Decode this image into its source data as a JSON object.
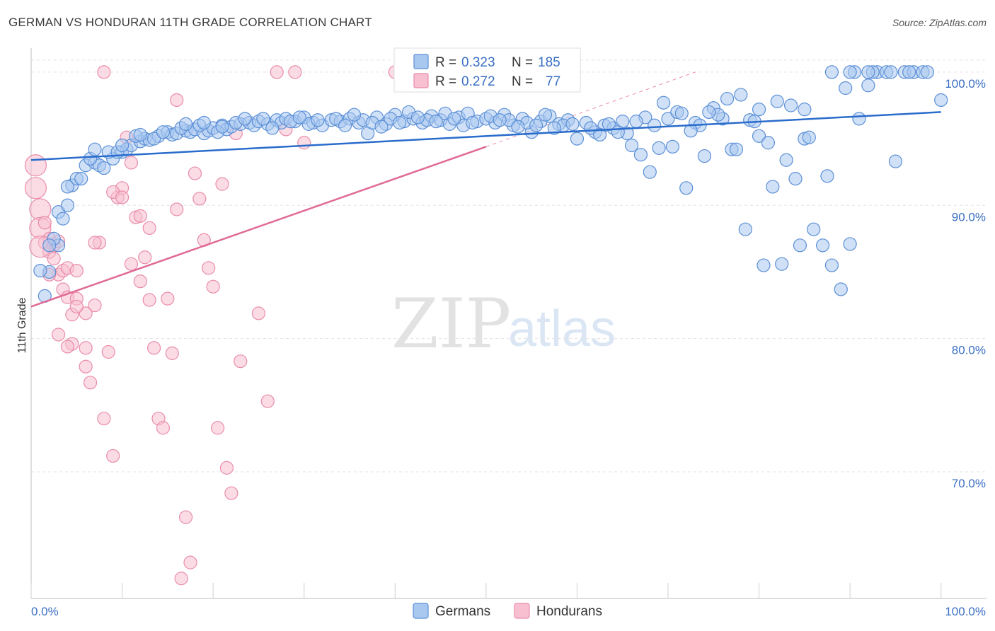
{
  "header": {
    "title": "GERMAN VS HONDURAN 11TH GRADE CORRELATION CHART",
    "source": "Source: ZipAtlas.com"
  },
  "watermark": {
    "zip": "ZIP",
    "atlas": "atlas"
  },
  "colors": {
    "german_fill": "#a9c8f0",
    "german_stroke": "#5b8fd6",
    "german_line": "#2a6ccc",
    "honduran_fill": "#f7bfd0",
    "honduran_stroke": "#e98cab",
    "honduran_line": "#e06a96",
    "tick_label": "#3a6fc4"
  },
  "legend": {
    "rows": [
      {
        "r_label": "R = ",
        "r_value": "0.323",
        "n_label": "N = ",
        "n_value": "185"
      },
      {
        "r_label": "R = ",
        "r_value": "0.272",
        "n_label": "N = ",
        "n_value": "77"
      }
    ]
  },
  "chart_data": {
    "type": "scatter",
    "title": "GERMAN VS HONDURAN 11TH GRADE CORRELATION CHART",
    "xlabel": "",
    "ylabel": "11th Grade",
    "xlim": [
      0,
      105
    ],
    "ylim": [
      60.5,
      101.8
    ],
    "x_tick_labels": [
      "0.0%",
      "100.0%"
    ],
    "y_ticks": [
      70,
      80,
      90,
      100
    ],
    "y_tick_labels": [
      "70.0%",
      "80.0%",
      "90.0%",
      "100.0%"
    ],
    "grid": true,
    "legend_position": "top-center",
    "series": [
      {
        "name": "Germans",
        "r": 0.323,
        "n": 185,
        "trend": {
          "x0": 0,
          "y0": 93.4,
          "x1": 100,
          "y1": 97.0
        },
        "points": [
          [
            1.5,
            83.2
          ],
          [
            2,
            85
          ],
          [
            3,
            87
          ],
          [
            3,
            89.5
          ],
          [
            4,
            90
          ],
          [
            4.5,
            91.5
          ],
          [
            5,
            92
          ],
          [
            6,
            93
          ],
          [
            7,
            93.2
          ],
          [
            7.5,
            93
          ],
          [
            8,
            92.8
          ],
          [
            9,
            93.5
          ],
          [
            10,
            94
          ],
          [
            10.5,
            94.2
          ],
          [
            11,
            94.5
          ],
          [
            12,
            94.8
          ],
          [
            12.5,
            95
          ],
          [
            13,
            94.9
          ],
          [
            14,
            95.2
          ],
          [
            15,
            95.5
          ],
          [
            15.5,
            95.3
          ],
          [
            16,
            95.4
          ],
          [
            17,
            95.6
          ],
          [
            17.5,
            95.5
          ],
          [
            18,
            95.7
          ],
          [
            19,
            95.4
          ],
          [
            19.5,
            95.6
          ],
          [
            20,
            95.8
          ],
          [
            21,
            96
          ],
          [
            21.5,
            95.7
          ],
          [
            22,
            95.9
          ],
          [
            23,
            96.1
          ],
          [
            24,
            96.2
          ],
          [
            24.5,
            96
          ],
          [
            25,
            96.3
          ],
          [
            26,
            96.1
          ],
          [
            27,
            96.4
          ],
          [
            27.5,
            96.2
          ],
          [
            28,
            96.5
          ],
          [
            29,
            96.3
          ],
          [
            30,
            96.6
          ],
          [
            31,
            96.2
          ],
          [
            32,
            96
          ],
          [
            33,
            96.4
          ],
          [
            34,
            96.3
          ],
          [
            35,
            96.5
          ],
          [
            36,
            96.2
          ],
          [
            36.5,
            96.4
          ],
          [
            37,
            95.4
          ],
          [
            38,
            96.6
          ],
          [
            39,
            96.1
          ],
          [
            40,
            96.8
          ],
          [
            41,
            96.3
          ],
          [
            42,
            96.5
          ],
          [
            43,
            96.2
          ],
          [
            44,
            96.7
          ],
          [
            45,
            96.4
          ],
          [
            46,
            96.1
          ],
          [
            47,
            96.6
          ],
          [
            48,
            96.9
          ],
          [
            49,
            96.3
          ],
          [
            50,
            96.5
          ],
          [
            51,
            96.2
          ],
          [
            52,
            96.8
          ],
          [
            53,
            96
          ],
          [
            54,
            96.5
          ],
          [
            55,
            95.5
          ],
          [
            56,
            96.3
          ],
          [
            57,
            96.7
          ],
          [
            58,
            96.1
          ],
          [
            59,
            96.4
          ],
          [
            60,
            95
          ],
          [
            61,
            96.2
          ],
          [
            62,
            95.5
          ],
          [
            63,
            96
          ],
          [
            64,
            95.8
          ],
          [
            65,
            96.3
          ],
          [
            66,
            94.5
          ],
          [
            67,
            93.8
          ],
          [
            68,
            92.5
          ],
          [
            69,
            94.3
          ],
          [
            70,
            96.5
          ],
          [
            71,
            97
          ],
          [
            72,
            91.3
          ],
          [
            73,
            96.2
          ],
          [
            74,
            93.7
          ],
          [
            75,
            97.3
          ],
          [
            76,
            96.5
          ],
          [
            77,
            94.2
          ],
          [
            78,
            98.3
          ],
          [
            79,
            96.4
          ],
          [
            80,
            95.2
          ],
          [
            81,
            94.7
          ],
          [
            82,
            97.8
          ],
          [
            83,
            93.4
          ],
          [
            84,
            92
          ],
          [
            85,
            95
          ],
          [
            86,
            88.2
          ],
          [
            87,
            87
          ],
          [
            88,
            85.5
          ],
          [
            89,
            83.7
          ],
          [
            90,
            87.1
          ],
          [
            91,
            96.5
          ],
          [
            92,
            99
          ],
          [
            93,
            100
          ],
          [
            94,
            100
          ],
          [
            95,
            93.3
          ],
          [
            96,
            100
          ],
          [
            97,
            100
          ],
          [
            98,
            100
          ],
          [
            100,
            97.9
          ],
          [
            5.5,
            92
          ],
          [
            6.5,
            93.5
          ],
          [
            8.5,
            94
          ],
          [
            9.5,
            94
          ],
          [
            11.5,
            95.2
          ],
          [
            13.5,
            95
          ],
          [
            16.5,
            95.8
          ],
          [
            18.5,
            96
          ],
          [
            20.5,
            95.5
          ],
          [
            22.5,
            96.2
          ],
          [
            25.5,
            96.5
          ],
          [
            28.5,
            96.3
          ],
          [
            30.5,
            96.1
          ],
          [
            33.5,
            96.5
          ],
          [
            35.5,
            96.8
          ],
          [
            37.5,
            96.2
          ],
          [
            39.5,
            96.5
          ],
          [
            41.5,
            97
          ],
          [
            43.5,
            96.4
          ],
          [
            45.5,
            96.9
          ],
          [
            47.5,
            96
          ],
          [
            50.5,
            96.7
          ],
          [
            52.5,
            96.4
          ],
          [
            54.5,
            96.2
          ],
          [
            56.5,
            96.8
          ],
          [
            58.5,
            96
          ],
          [
            61.5,
            95.8
          ],
          [
            63.5,
            96.1
          ],
          [
            65.5,
            95.4
          ],
          [
            67.5,
            96.6
          ],
          [
            69.5,
            97.7
          ],
          [
            71.5,
            96.9
          ],
          [
            73.5,
            96
          ],
          [
            75.5,
            96.8
          ],
          [
            77.5,
            94.2
          ],
          [
            79.5,
            96.3
          ],
          [
            81.5,
            91.4
          ],
          [
            83.5,
            97.5
          ],
          [
            85.5,
            95.1
          ],
          [
            87.5,
            92.2
          ],
          [
            89.5,
            98.8
          ],
          [
            90.5,
            100
          ],
          [
            92.5,
            100
          ],
          [
            94.5,
            100
          ],
          [
            96.5,
            100
          ],
          [
            98.5,
            100
          ],
          [
            84.5,
            87
          ],
          [
            82.5,
            85.6
          ],
          [
            80.5,
            85.5
          ],
          [
            78.5,
            88.2
          ],
          [
            1,
            85.1
          ],
          [
            2.5,
            87.5
          ],
          [
            3.5,
            89
          ],
          [
            4,
            91.4
          ],
          [
            2,
            87
          ],
          [
            7,
            94.2
          ],
          [
            10,
            94.5
          ],
          [
            12,
            95.3
          ],
          [
            14.5,
            95.5
          ],
          [
            17,
            96.1
          ],
          [
            19,
            96.2
          ],
          [
            21,
            95.9
          ],
          [
            23.5,
            96.5
          ],
          [
            26.5,
            95.8
          ],
          [
            29.5,
            96.6
          ],
          [
            31.5,
            96.4
          ],
          [
            34.5,
            96
          ],
          [
            38.5,
            95.9
          ],
          [
            40.5,
            96.2
          ],
          [
            42.5,
            96.6
          ],
          [
            44.5,
            96.3
          ],
          [
            46.5,
            96.5
          ],
          [
            48.5,
            96.2
          ],
          [
            51.5,
            96.4
          ],
          [
            53.5,
            95.9
          ],
          [
            55.5,
            96
          ],
          [
            57.5,
            95.8
          ],
          [
            59.5,
            96.1
          ],
          [
            62.5,
            95.3
          ],
          [
            64.5,
            95.5
          ],
          [
            66.5,
            96.3
          ],
          [
            68.5,
            96
          ],
          [
            70.5,
            94.4
          ],
          [
            72.5,
            95.6
          ],
          [
            74.5,
            97
          ],
          [
            76.5,
            98
          ],
          [
            80,
            97.2
          ],
          [
            85,
            97.2
          ],
          [
            88,
            100
          ],
          [
            90,
            100
          ],
          [
            92,
            100
          ]
        ]
      },
      {
        "name": "Hondurans",
        "r": 0.272,
        "n": 77,
        "trend": {
          "x0": 0,
          "y0": 82.4,
          "x1": 50,
          "y1": 94.4
        },
        "points": [
          [
            0.5,
            93
          ],
          [
            0.5,
            91.3
          ],
          [
            1,
            89.7
          ],
          [
            1,
            88.3
          ],
          [
            1.5,
            88.7
          ],
          [
            1.5,
            87.2
          ],
          [
            2,
            87.5
          ],
          [
            2,
            86.5
          ],
          [
            2.5,
            87
          ],
          [
            2.5,
            86
          ],
          [
            3,
            87.3
          ],
          [
            3,
            84.8
          ],
          [
            3.5,
            85.1
          ],
          [
            3.5,
            83.7
          ],
          [
            4,
            85.3
          ],
          [
            4,
            83.1
          ],
          [
            4.5,
            81.8
          ],
          [
            4.5,
            79.6
          ],
          [
            5,
            85.1
          ],
          [
            5,
            83
          ],
          [
            6,
            81.9
          ],
          [
            6,
            79.3
          ],
          [
            6.5,
            76.7
          ],
          [
            7,
            82.5
          ],
          [
            7.5,
            87.2
          ],
          [
            8,
            74
          ],
          [
            8.5,
            79
          ],
          [
            9,
            71.2
          ],
          [
            9.5,
            90.6
          ],
          [
            10,
            91.3
          ],
          [
            10.5,
            95.1
          ],
          [
            11,
            93.2
          ],
          [
            11.5,
            89.1
          ],
          [
            12,
            84.3
          ],
          [
            12.5,
            86.1
          ],
          [
            13,
            82.9
          ],
          [
            13.5,
            79.3
          ],
          [
            14,
            74
          ],
          [
            14.5,
            73.3
          ],
          [
            15,
            83
          ],
          [
            15.5,
            78.9
          ],
          [
            16,
            89.7
          ],
          [
            16.5,
            62
          ],
          [
            17,
            66.6
          ],
          [
            17.5,
            63.2
          ],
          [
            18,
            92.4
          ],
          [
            18.5,
            90.5
          ],
          [
            19,
            87.4
          ],
          [
            19.5,
            85.3
          ],
          [
            20,
            83.9
          ],
          [
            20.5,
            73.3
          ],
          [
            21,
            91.6
          ],
          [
            21.5,
            70.3
          ],
          [
            22,
            68.4
          ],
          [
            22.5,
            95.4
          ],
          [
            23,
            78.3
          ],
          [
            25,
            81.9
          ],
          [
            26,
            75.3
          ],
          [
            27,
            100
          ],
          [
            28,
            95.7
          ],
          [
            29,
            100
          ],
          [
            30,
            94.7
          ],
          [
            40,
            100
          ],
          [
            8,
            100
          ],
          [
            16,
            97.9
          ],
          [
            1,
            86.9
          ],
          [
            2,
            84.8
          ],
          [
            3,
            80.3
          ],
          [
            4,
            79.4
          ],
          [
            5,
            82.4
          ],
          [
            6,
            77.9
          ],
          [
            7,
            87.2
          ],
          [
            9,
            91
          ],
          [
            10,
            90.6
          ],
          [
            11,
            85.6
          ],
          [
            12,
            89.2
          ],
          [
            13,
            88.3
          ]
        ]
      }
    ]
  },
  "bottom_legend": {
    "items": [
      {
        "label": "Germans"
      },
      {
        "label": "Hondurans"
      }
    ]
  }
}
